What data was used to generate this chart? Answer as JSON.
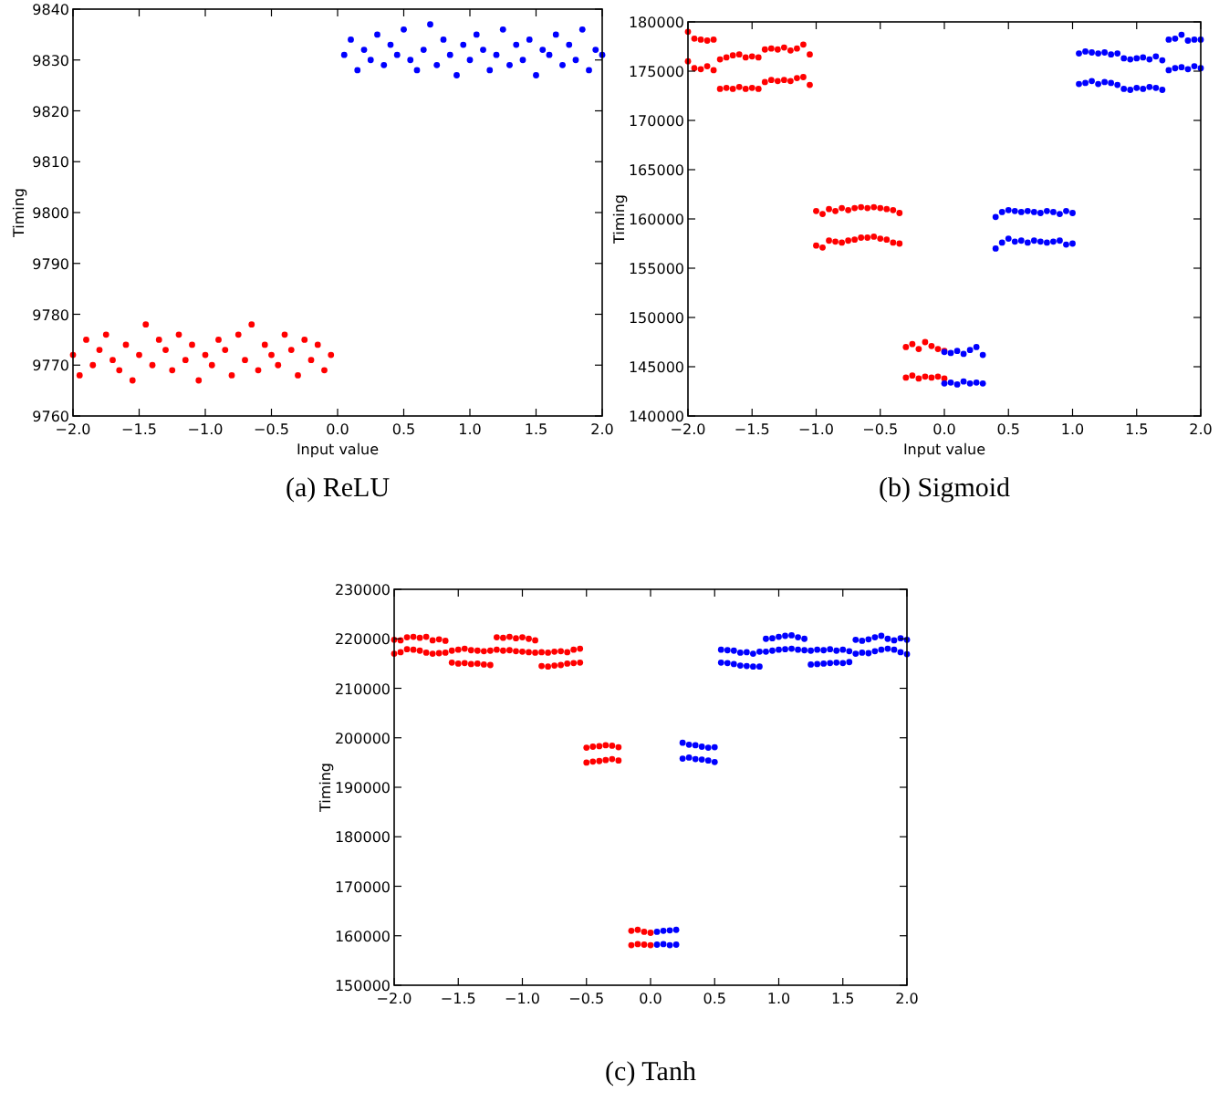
{
  "chart_data": [
    {
      "type": "scatter",
      "title": "(a) ReLU",
      "xlabel": "Input value",
      "ylabel": "Timing",
      "xlim": [
        -2,
        2
      ],
      "ylim": [
        9760,
        9840
      ],
      "xticks": [
        {
          "value": -2,
          "label": "−2.0"
        },
        {
          "value": -1.5,
          "label": "−1.5"
        },
        {
          "value": -1,
          "label": "−1.0"
        },
        {
          "value": -0.5,
          "label": "−0.5"
        },
        {
          "value": 0,
          "label": "0.0"
        },
        {
          "value": 0.5,
          "label": "0.5"
        },
        {
          "value": 1,
          "label": "1.0"
        },
        {
          "value": 1.5,
          "label": "1.5"
        },
        {
          "value": 2,
          "label": "2.0"
        }
      ],
      "yticks": [
        9760,
        9770,
        9780,
        9790,
        9800,
        9810,
        9820,
        9830,
        9840
      ],
      "grid": false,
      "marker": "circle",
      "series": [
        {
          "color": "#ff0000",
          "x": [
            -2,
            -1.95,
            -1.9,
            -1.85,
            -1.8,
            -1.75,
            -1.7,
            -1.65,
            -1.6,
            -1.55,
            -1.5,
            -1.45,
            -1.4,
            -1.35,
            -1.3,
            -1.25,
            -1.2,
            -1.15,
            -1.1,
            -1.05,
            -1,
            -0.95,
            -0.9,
            -0.85,
            -0.8,
            -0.75,
            -0.7,
            -0.65,
            -0.6,
            -0.55,
            -0.5,
            -0.45,
            -0.4,
            -0.35,
            -0.3,
            -0.25,
            -0.2,
            -0.15,
            -0.1,
            -0.05
          ],
          "values": [
            9772,
            9768,
            9775,
            9770,
            9773,
            9776,
            9771,
            9769,
            9774,
            9767,
            9772,
            9778,
            9770,
            9775,
            9773,
            9769,
            9776,
            9771,
            9774,
            9767,
            9772,
            9770,
            9775,
            9773,
            9768,
            9776,
            9771,
            9778,
            9769,
            9774,
            9772,
            9770,
            9776,
            9773,
            9768,
            9775,
            9771,
            9774,
            9769,
            9772
          ]
        },
        {
          "color": "#0000ff",
          "x": [
            0.05,
            0.1,
            0.15,
            0.2,
            0.25,
            0.3,
            0.35,
            0.4,
            0.45,
            0.5,
            0.55,
            0.6,
            0.65,
            0.7,
            0.75,
            0.8,
            0.85,
            0.9,
            0.95,
            1,
            1.05,
            1.1,
            1.15,
            1.2,
            1.25,
            1.3,
            1.35,
            1.4,
            1.45,
            1.5,
            1.55,
            1.6,
            1.65,
            1.7,
            1.75,
            1.8,
            1.85,
            1.9,
            1.95,
            2
          ],
          "values": [
            9831,
            9834,
            9828,
            9832,
            9830,
            9835,
            9829,
            9833,
            9831,
            9836,
            9830,
            9828,
            9832,
            9837,
            9829,
            9834,
            9831,
            9827,
            9833,
            9830,
            9835,
            9832,
            9828,
            9831,
            9836,
            9829,
            9833,
            9830,
            9834,
            9827,
            9832,
            9831,
            9835,
            9829,
            9833,
            9830,
            9836,
            9828,
            9832,
            9831
          ]
        }
      ]
    },
    {
      "type": "scatter",
      "title": "(b) Sigmoid",
      "xlabel": "Input value",
      "ylabel": "Timing",
      "xlim": [
        -2,
        2
      ],
      "ylim": [
        140000,
        180000
      ],
      "xticks": [
        {
          "value": -2,
          "label": "−2.0"
        },
        {
          "value": -1.5,
          "label": "−1.5"
        },
        {
          "value": -1,
          "label": "−1.0"
        },
        {
          "value": -0.5,
          "label": "−0.5"
        },
        {
          "value": 0,
          "label": "0.0"
        },
        {
          "value": 0.5,
          "label": "0.5"
        },
        {
          "value": 1,
          "label": "1.0"
        },
        {
          "value": 1.5,
          "label": "1.5"
        },
        {
          "value": 2,
          "label": "2.0"
        }
      ],
      "yticks": [
        140000,
        145000,
        150000,
        155000,
        160000,
        165000,
        170000,
        175000,
        180000
      ],
      "grid": false,
      "marker": "circle",
      "series": [
        {
          "color": "#ff0000",
          "x": [
            -2,
            -1.95,
            -1.9,
            -1.85,
            -1.8,
            -1.75,
            -1.7,
            -1.65,
            -1.6,
            -1.55,
            -1.5,
            -1.45,
            -1.4,
            -1.35,
            -1.3,
            -1.25,
            -1.2,
            -1.15,
            -1.1,
            -1.05,
            -1,
            -0.95,
            -0.9,
            -0.85,
            -0.8,
            -0.75,
            -0.7,
            -0.65,
            -0.6,
            -0.55,
            -0.5,
            -0.45,
            -0.4,
            -0.35,
            -0.3,
            -0.25,
            -0.2,
            -0.15,
            -0.1,
            -0.05,
            0,
            -2,
            -1.95,
            -1.9,
            -1.85,
            -1.8,
            -1.75,
            -1.7,
            -1.65,
            -1.6,
            -1.55,
            -1.5,
            -1.45,
            -1.4,
            -1.35,
            -1.3,
            -1.25,
            -1.2,
            -1.15,
            -1.1,
            -1.05,
            -1,
            -0.95,
            -0.9,
            -0.85,
            -0.8,
            -0.75,
            -0.7,
            -0.65,
            -0.6,
            -0.55,
            -0.5,
            -0.45,
            -0.4,
            -0.35,
            -0.3,
            -0.25,
            -0.2,
            -0.15,
            -0.1,
            -0.05,
            0
          ],
          "values": [
            176000,
            175300,
            175200,
            175500,
            175100,
            173200,
            173300,
            173200,
            173400,
            173200,
            173300,
            173200,
            173900,
            174100,
            174000,
            174100,
            174000,
            174300,
            174400,
            173600,
            157300,
            157100,
            157800,
            157700,
            157600,
            157800,
            157900,
            158100,
            158100,
            158200,
            158000,
            157900,
            157600,
            157500,
            143900,
            144100,
            143800,
            144000,
            143900,
            144000,
            143800,
            179000,
            178300,
            178200,
            178100,
            178200,
            176200,
            176400,
            176600,
            176700,
            176400,
            176500,
            176400,
            177200,
            177300,
            177200,
            177400,
            177100,
            177300,
            177700,
            176700,
            160800,
            160500,
            161000,
            160800,
            161100,
            160900,
            161100,
            161200,
            161100,
            161200,
            161100,
            161000,
            160900,
            160600,
            147000,
            147300,
            146800,
            147500,
            147100,
            146800,
            146600
          ]
        },
        {
          "color": "#0000ff",
          "x": [
            0,
            0.05,
            0.1,
            0.15,
            0.2,
            0.25,
            0.3,
            0.4,
            0.45,
            0.5,
            0.55,
            0.6,
            0.65,
            0.7,
            0.75,
            0.8,
            0.85,
            0.9,
            0.95,
            1,
            1.05,
            1.1,
            1.15,
            1.2,
            1.25,
            1.3,
            1.35,
            1.4,
            1.45,
            1.5,
            1.55,
            1.6,
            1.65,
            1.7,
            1.75,
            1.8,
            1.85,
            1.9,
            1.95,
            2,
            0,
            0.05,
            0.1,
            0.15,
            0.2,
            0.25,
            0.3,
            0.4,
            0.45,
            0.5,
            0.55,
            0.6,
            0.65,
            0.7,
            0.75,
            0.8,
            0.85,
            0.9,
            0.95,
            1,
            1.05,
            1.1,
            1.15,
            1.2,
            1.25,
            1.3,
            1.35,
            1.4,
            1.45,
            1.5,
            1.55,
            1.6,
            1.65,
            1.7,
            1.75,
            1.8,
            1.85,
            1.9,
            1.95,
            2
          ],
          "values": [
            143300,
            143400,
            143200,
            143500,
            143300,
            143400,
            143300,
            157000,
            157600,
            158000,
            157700,
            157800,
            157600,
            157800,
            157700,
            157600,
            157700,
            157800,
            157400,
            157500,
            173700,
            173800,
            174000,
            173700,
            173900,
            173800,
            173600,
            173200,
            173100,
            173300,
            173200,
            173400,
            173300,
            173100,
            175100,
            175300,
            175400,
            175200,
            175500,
            175300,
            146500,
            146400,
            146600,
            146300,
            146700,
            147000,
            146200,
            160200,
            160700,
            160900,
            160800,
            160700,
            160800,
            160700,
            160600,
            160800,
            160700,
            160500,
            160800,
            160600,
            176800,
            177000,
            176900,
            176800,
            176900,
            176700,
            176800,
            176300,
            176200,
            176300,
            176400,
            176200,
            176500,
            176100,
            178200,
            178300,
            178700,
            178100,
            178200,
            178200
          ]
        }
      ]
    },
    {
      "type": "scatter",
      "title": "(c) Tanh",
      "ylabel": "Timing",
      "xlim": [
        -2,
        2
      ],
      "ylim": [
        150000,
        230000
      ],
      "xticks": [
        {
          "value": -2,
          "label": "−2.0"
        },
        {
          "value": -1.5,
          "label": "−1.5"
        },
        {
          "value": -1,
          "label": "−1.0"
        },
        {
          "value": -0.5,
          "label": "−0.5"
        },
        {
          "value": 0,
          "label": "0.0"
        },
        {
          "value": 0.5,
          "label": "0.5"
        },
        {
          "value": 1,
          "label": "1.0"
        },
        {
          "value": 1.5,
          "label": "1.5"
        },
        {
          "value": 2,
          "label": "2.0"
        }
      ],
      "yticks": [
        150000,
        160000,
        170000,
        180000,
        190000,
        200000,
        210000,
        220000,
        230000
      ],
      "grid": false,
      "marker": "circle",
      "series": [
        {
          "color": "#ff0000",
          "x": [
            -2,
            -1.95,
            -1.9,
            -1.85,
            -1.8,
            -1.75,
            -1.7,
            -1.65,
            -1.6,
            -1.55,
            -1.5,
            -1.45,
            -1.4,
            -1.35,
            -1.3,
            -1.25,
            -1.2,
            -1.15,
            -1.1,
            -1.05,
            -1,
            -0.95,
            -0.9,
            -0.85,
            -0.8,
            -0.75,
            -0.7,
            -0.65,
            -0.6,
            -0.55,
            -0.5,
            -0.45,
            -0.4,
            -0.35,
            -0.3,
            -0.25,
            -0.15,
            -0.1,
            -0.05,
            0,
            -2,
            -1.95,
            -1.9,
            -1.85,
            -1.8,
            -1.75,
            -1.7,
            -1.65,
            -1.6,
            -1.55,
            -1.5,
            -1.45,
            -1.4,
            -1.35,
            -1.3,
            -1.25,
            -1.2,
            -1.15,
            -1.1,
            -1.05,
            -1,
            -0.95,
            -0.9,
            -0.85,
            -0.8,
            -0.75,
            -0.7,
            -0.65,
            -0.6,
            -0.55,
            -0.5,
            -0.45,
            -0.4,
            -0.35,
            -0.3,
            -0.25,
            -0.15,
            -0.1,
            -0.05,
            0
          ],
          "values": [
            217000,
            217300,
            217900,
            217800,
            217600,
            217200,
            217000,
            217100,
            217200,
            215200,
            215000,
            215100,
            214900,
            215000,
            214800,
            214700,
            217800,
            217600,
            217700,
            217500,
            217400,
            217300,
            217200,
            214500,
            214400,
            214600,
            214700,
            215000,
            215100,
            215200,
            195000,
            195200,
            195300,
            195500,
            195700,
            195400,
            158100,
            158300,
            158200,
            158100,
            219800,
            219700,
            220300,
            220400,
            220200,
            220400,
            219700,
            219900,
            219600,
            217600,
            217800,
            218000,
            217700,
            217600,
            217500,
            217600,
            220300,
            220200,
            220400,
            220100,
            220300,
            220000,
            219700,
            217300,
            217200,
            217400,
            217500,
            217300,
            217800,
            218000,
            198000,
            198200,
            198300,
            198500,
            198400,
            198100,
            161000,
            161200,
            160800,
            160600
          ]
        },
        {
          "color": "#0000ff",
          "x": [
            0.05,
            0.1,
            0.15,
            0.2,
            0.25,
            0.3,
            0.35,
            0.4,
            0.45,
            0.5,
            0.55,
            0.6,
            0.65,
            0.7,
            0.75,
            0.8,
            0.85,
            0.9,
            0.95,
            1,
            1.05,
            1.1,
            1.15,
            1.2,
            1.25,
            1.3,
            1.35,
            1.4,
            1.45,
            1.5,
            1.55,
            1.6,
            1.65,
            1.7,
            1.75,
            1.8,
            1.85,
            1.9,
            1.95,
            2,
            0.05,
            0.1,
            0.15,
            0.2,
            0.25,
            0.3,
            0.35,
            0.4,
            0.45,
            0.5,
            0.55,
            0.6,
            0.65,
            0.7,
            0.75,
            0.8,
            0.85,
            0.9,
            0.95,
            1,
            1.05,
            1.1,
            1.15,
            1.2,
            1.25,
            1.3,
            1.35,
            1.4,
            1.45,
            1.5,
            1.55,
            1.6,
            1.65,
            1.7,
            1.75,
            1.8,
            1.85,
            1.9,
            1.95,
            2
          ],
          "values": [
            158200,
            158300,
            158100,
            158200,
            195800,
            196000,
            195700,
            195600,
            195400,
            195100,
            215200,
            215100,
            214900,
            214600,
            214500,
            214400,
            214400,
            217400,
            217600,
            217800,
            217900,
            218000,
            217800,
            217700,
            214800,
            214900,
            215000,
            215100,
            215200,
            215100,
            215300,
            217000,
            217200,
            217100,
            217500,
            217800,
            218000,
            217800,
            217300,
            216900,
            160800,
            161000,
            161100,
            161200,
            199000,
            198600,
            198500,
            198200,
            198000,
            198100,
            217800,
            217700,
            217600,
            217200,
            217300,
            217000,
            217400,
            220000,
            220100,
            220400,
            220600,
            220700,
            220300,
            220000,
            217600,
            217800,
            217700,
            217900,
            217600,
            217800,
            217500,
            219800,
            219600,
            219900,
            220300,
            220600,
            220000,
            219700,
            220100,
            219800
          ]
        }
      ]
    }
  ]
}
